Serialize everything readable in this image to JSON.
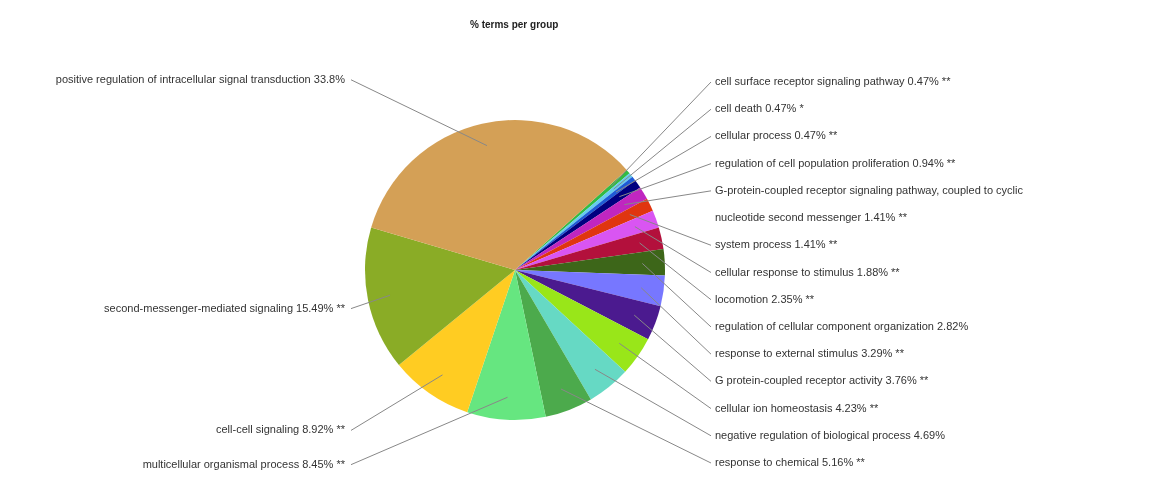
{
  "chart_data": {
    "type": "pie",
    "title": "% terms per group",
    "categories": [
      "cell surface receptor signaling pathway",
      "cell death",
      "cellular process",
      "regulation of cell population proliferation",
      "G-protein-coupled receptor signaling pathway, coupled to cyclic nucleotide second messenger",
      "system process",
      "cellular response to stimulus",
      "locomotion",
      "regulation of cellular component organization",
      "response to external stimulus",
      "G protein-coupled receptor activity",
      "cellular ion homeostasis",
      "negative regulation of biological process",
      "response to chemical",
      "multicellular organismal process",
      "cell-cell signaling",
      "second-messenger-mediated signaling",
      "positive regulation of intracellular signal transduction"
    ],
    "values": [
      0.47,
      0.47,
      0.47,
      0.94,
      1.41,
      1.41,
      1.88,
      2.35,
      2.82,
      3.29,
      3.76,
      4.23,
      4.69,
      5.16,
      8.45,
      8.92,
      15.49,
      33.8
    ],
    "value_labels": [
      "0.47% **",
      "0.47% *",
      "0.47% **",
      "0.94% **",
      "1.41% **",
      "1.41% **",
      "1.88% **",
      "2.35% **",
      "2.82%",
      "3.29% **",
      "3.76% **",
      "4.23% **",
      "4.69%",
      "5.16% **",
      "8.45% **",
      "8.92% **",
      "15.49% **",
      "33.8%"
    ],
    "colors": [
      "#33bb44",
      "#66ccee",
      "#1e5bd6",
      "#000080",
      "#c026c0",
      "#e03510",
      "#d955f2",
      "#b3103c",
      "#3d6619",
      "#7777ff",
      "#4b1a8f",
      "#99e619",
      "#66d9c4",
      "#4caa4c",
      "#66e680",
      "#ffcc22",
      "#8aac26",
      "#d4a056"
    ],
    "legend": false
  }
}
